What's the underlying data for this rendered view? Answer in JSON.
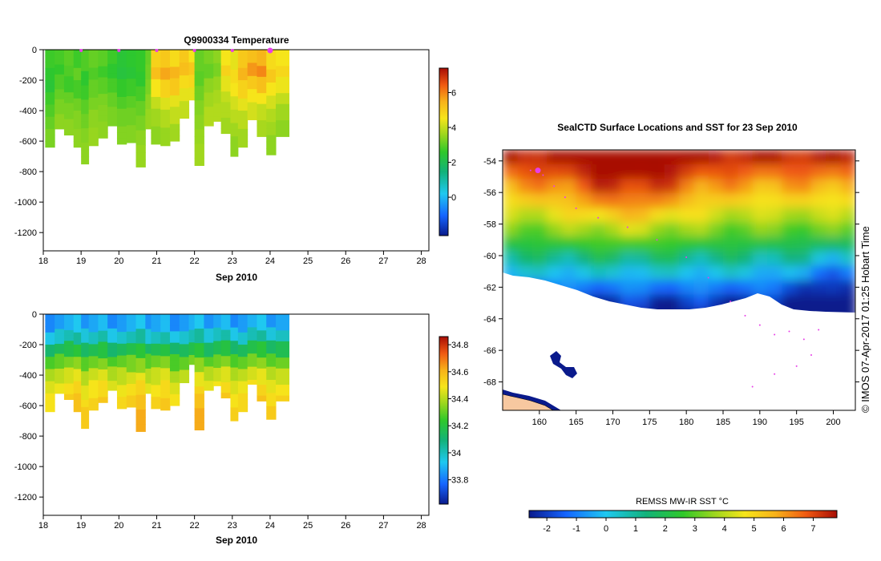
{
  "chart_data": [
    {
      "type": "heatmap",
      "title": "Q9900334  Temperature",
      "xlabel": "Sep 2010",
      "xlim": [
        18,
        28.2
      ],
      "ylim": [
        -1320,
        0
      ],
      "xticks": [
        "18",
        "19",
        "20",
        "21",
        "22",
        "23",
        "24",
        "25",
        "26",
        "27",
        "28"
      ],
      "yticks": [
        "0",
        "-200",
        "-400",
        "-600",
        "-800",
        "-1000",
        "-1200"
      ],
      "colorbar": {
        "ticks": [
          "0",
          "2",
          "4",
          "6"
        ],
        "range": [
          -2.2,
          7.4
        ]
      },
      "colormap": [
        "#0a1a8c",
        "#1565ff",
        "#1fc8f0",
        "#12b27a",
        "#2fc82a",
        "#9ad61e",
        "#f6e51a",
        "#f7b21a",
        "#f05a12",
        "#a80d05"
      ],
      "profile_markers": [
        19,
        20,
        21,
        22,
        23,
        24
      ],
      "profiles": [
        {
          "x": 18.05,
          "maxdepth": 640,
          "temps": [
            2.2,
            2.0,
            1.9,
            2.2,
            2.4,
            2.6,
            2.8
          ]
        },
        {
          "x": 18.3,
          "maxdepth": 520,
          "temps": [
            2.3,
            2.1,
            2.4,
            2.6,
            2.8,
            3.0
          ]
        },
        {
          "x": 18.55,
          "maxdepth": 560,
          "temps": [
            2.5,
            2.4,
            2.2,
            2.6,
            2.8,
            3.0
          ]
        },
        {
          "x": 18.8,
          "maxdepth": 640,
          "temps": [
            2.2,
            2.6,
            2.3,
            2.7,
            2.9,
            3.0
          ]
        },
        {
          "x": 19.0,
          "maxdepth": 750,
          "temps": [
            2.4,
            2.0,
            2.2,
            2.5,
            2.7,
            2.9,
            3.0
          ]
        },
        {
          "x": 19.2,
          "maxdepth": 630,
          "temps": [
            2.6,
            2.4,
            2.6,
            2.8,
            3.0,
            3.1
          ]
        },
        {
          "x": 19.45,
          "maxdepth": 580,
          "temps": [
            2.5,
            2.2,
            2.5,
            2.8,
            2.9,
            3.0
          ]
        },
        {
          "x": 19.7,
          "maxdepth": 500,
          "temps": [
            2.2,
            2.0,
            2.3,
            2.6,
            2.8
          ]
        },
        {
          "x": 19.95,
          "maxdepth": 620,
          "temps": [
            1.9,
            1.8,
            2.1,
            2.4,
            2.7,
            2.9
          ]
        },
        {
          "x": 20.2,
          "maxdepth": 610,
          "temps": [
            2.0,
            1.9,
            2.2,
            2.5,
            2.7,
            2.9
          ]
        },
        {
          "x": 20.45,
          "maxdepth": 770,
          "temps": [
            2.1,
            2.0,
            2.3,
            2.6,
            2.8,
            3.0,
            3.1
          ]
        },
        {
          "x": 20.7,
          "maxdepth": 520,
          "temps": [
            2.6,
            2.7,
            2.8,
            3.0,
            3.1
          ]
        },
        {
          "x": 20.85,
          "maxdepth": 620,
          "temps": [
            4.6,
            5.0,
            4.2,
            3.6,
            3.2,
            3.0
          ]
        },
        {
          "x": 21.1,
          "maxdepth": 630,
          "temps": [
            4.8,
            5.4,
            4.6,
            3.9,
            3.4,
            3.1
          ]
        },
        {
          "x": 21.35,
          "maxdepth": 600,
          "temps": [
            4.4,
            5.2,
            4.8,
            4.0,
            3.6,
            3.2
          ]
        },
        {
          "x": 21.6,
          "maxdepth": 450,
          "temps": [
            4.8,
            5.0,
            4.4,
            4.0,
            3.6
          ]
        },
        {
          "x": 21.85,
          "maxdepth": 330,
          "temps": [
            4.2,
            4.8,
            4.5,
            4.0
          ]
        },
        {
          "x": 22.0,
          "maxdepth": 760,
          "temps": [
            2.6,
            2.5,
            2.7,
            2.9,
            3.0,
            3.1,
            3.2
          ]
        },
        {
          "x": 22.25,
          "maxdepth": 500,
          "temps": [
            2.8,
            2.6,
            3.0,
            3.2,
            3.4
          ]
        },
        {
          "x": 22.5,
          "maxdepth": 470,
          "temps": [
            3.0,
            2.8,
            3.1,
            3.3,
            3.4
          ]
        },
        {
          "x": 22.7,
          "maxdepth": 550,
          "temps": [
            4.2,
            4.6,
            4.0,
            3.6,
            3.4,
            3.2
          ]
        },
        {
          "x": 22.95,
          "maxdepth": 700,
          "temps": [
            4.0,
            4.4,
            4.2,
            3.8,
            3.5,
            3.2,
            3.0
          ]
        },
        {
          "x": 23.15,
          "maxdepth": 640,
          "temps": [
            4.8,
            5.2,
            4.6,
            4.0,
            3.5,
            3.2
          ]
        },
        {
          "x": 23.4,
          "maxdepth": 460,
          "temps": [
            5.0,
            5.6,
            4.8,
            4.2,
            3.8
          ]
        },
        {
          "x": 23.65,
          "maxdepth": 570,
          "temps": [
            5.2,
            5.8,
            5.0,
            4.2,
            3.6,
            3.3
          ]
        },
        {
          "x": 23.9,
          "maxdepth": 690,
          "temps": [
            4.4,
            4.8,
            4.2,
            3.8,
            3.4,
            3.2,
            3.0
          ]
        },
        {
          "x": 24.15,
          "maxdepth": 570,
          "temps": [
            4.2,
            4.5,
            4.1,
            3.6,
            3.2,
            3.0
          ]
        }
      ]
    },
    {
      "type": "heatmap",
      "title": "",
      "xlabel": "Sep 2010",
      "xlim": [
        18,
        28.2
      ],
      "ylim": [
        -1320,
        0
      ],
      "xticks": [
        "18",
        "19",
        "20",
        "21",
        "22",
        "23",
        "24",
        "25",
        "26",
        "27",
        "28"
      ],
      "yticks": [
        "0",
        "-200",
        "-400",
        "-600",
        "-800",
        "-1000",
        "-1200"
      ],
      "colorbar": {
        "ticks": [
          "33.8",
          "34",
          "34.2",
          "34.4",
          "34.6",
          "34.8"
        ],
        "range": [
          33.62,
          34.86
        ]
      },
      "profiles_ref": "same stations as temperature panel",
      "salinity_profile": [
        33.85,
        33.95,
        34.1,
        34.25,
        34.38,
        34.45,
        34.5,
        34.55
      ]
    },
    {
      "type": "heatmap",
      "title": "SealCTD Surface Locations and SST for 23 Sep 2010",
      "xlim": [
        155,
        203
      ],
      "ylim": [
        -69.8,
        -53.3
      ],
      "xticks": [
        "160",
        "165",
        "170",
        "175",
        "180",
        "185",
        "190",
        "195",
        "200"
      ],
      "yticks": [
        "-54",
        "-56",
        "-58",
        "-60",
        "-62",
        "-64",
        "-66",
        "-68"
      ],
      "colorbar": {
        "label": "REMSS MW-IR SST °C",
        "ticks": [
          "-2",
          "-1",
          "0",
          "1",
          "2",
          "3",
          "4",
          "5",
          "6",
          "7"
        ],
        "range": [
          -2.6,
          7.8
        ]
      },
      "track_color": "#e83ee8",
      "land_color": "#f7c8a0"
    }
  ],
  "credit": "© IMOS 07-Apr-2017 01:25 Hobart Time"
}
